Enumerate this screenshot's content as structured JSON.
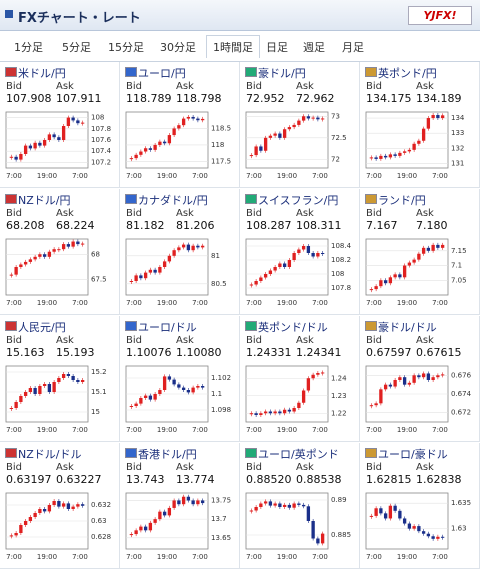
{
  "header": {
    "title": "FXチャート・レート",
    "logo": "YJFX!"
  },
  "tabs": [
    "1分足",
    "5分足",
    "15分足",
    "30分足",
    "1時間足",
    "日足",
    "週足",
    "月足"
  ],
  "selected_tab": 4,
  "labels": {
    "bid": "Bid",
    "ask": "Ask"
  },
  "time_labels": [
    "7:00",
    "19:00",
    "7:00"
  ],
  "panels": [
    {
      "name": "米ドル/円",
      "bid": "107.908",
      "ask": "107.911",
      "ylim": [
        107.1,
        108.1
      ],
      "yticks": [
        108,
        107.8,
        107.6,
        107.4,
        107.2
      ],
      "values": [
        107.3,
        107.25,
        107.35,
        107.5,
        107.45,
        107.55,
        107.5,
        107.6,
        107.7,
        107.65,
        107.6,
        107.85,
        108.0,
        107.95,
        107.9,
        107.91
      ]
    },
    {
      "name": "ユーロ/円",
      "bid": "118.789",
      "ask": "118.798",
      "ylim": [
        117.3,
        119
      ],
      "yticks": [
        118.5,
        118,
        117.5
      ],
      "values": [
        117.6,
        117.7,
        117.8,
        117.9,
        117.85,
        118.0,
        118.1,
        118.05,
        118.3,
        118.5,
        118.6,
        118.8,
        118.85,
        118.8,
        118.75,
        118.79
      ]
    },
    {
      "name": "豪ドル/円",
      "bid": "72.952",
      "ask": "72.962",
      "ylim": [
        71.8,
        73.1
      ],
      "yticks": [
        73,
        72.5,
        72
      ],
      "values": [
        72.1,
        72.3,
        72.2,
        72.5,
        72.55,
        72.6,
        72.5,
        72.7,
        72.75,
        72.8,
        72.9,
        73.0,
        72.95,
        72.97,
        72.93,
        72.95
      ]
    },
    {
      "name": "英ポンド/円",
      "bid": "134.175",
      "ask": "134.189",
      "ylim": [
        130.7,
        134.4
      ],
      "yticks": [
        134,
        133,
        132,
        131
      ],
      "values": [
        131.4,
        131.3,
        131.5,
        131.4,
        131.6,
        131.5,
        131.7,
        131.8,
        131.9,
        132.3,
        132.5,
        133.3,
        134.0,
        134.2,
        134.0,
        134.18
      ]
    },
    {
      "name": "NZドル/円",
      "bid": "68.208",
      "ask": "68.224",
      "ylim": [
        67.2,
        68.3
      ],
      "yticks": [
        68,
        67.5
      ],
      "values": [
        67.6,
        67.75,
        67.8,
        67.85,
        67.9,
        67.95,
        68.0,
        67.95,
        68.05,
        68.1,
        68.1,
        68.2,
        68.15,
        68.25,
        68.2,
        68.21
      ]
    },
    {
      "name": "カナダドル/円",
      "bid": "81.182",
      "ask": "81.206",
      "ylim": [
        80.3,
        81.3
      ],
      "yticks": [
        81,
        80.5
      ],
      "values": [
        80.55,
        80.65,
        80.6,
        80.7,
        80.75,
        80.7,
        80.8,
        80.9,
        81.0,
        81.1,
        81.15,
        81.2,
        81.1,
        81.18,
        81.15,
        81.18
      ]
    },
    {
      "name": "スイスフラン/円",
      "bid": "108.287",
      "ask": "108.311",
      "ylim": [
        107.7,
        108.5
      ],
      "yticks": [
        108.4,
        108.2,
        108,
        107.8
      ],
      "values": [
        107.85,
        107.9,
        107.95,
        108.0,
        108.05,
        108.1,
        108.15,
        108.1,
        108.2,
        108.3,
        108.35,
        108.4,
        108.3,
        108.25,
        108.3,
        108.29
      ]
    },
    {
      "name": "ランド/円",
      "bid": "7.167",
      "ask": "7.180",
      "ylim": [
        7.0,
        7.19
      ],
      "yticks": [
        7.15,
        7.1,
        7.05
      ],
      "values": [
        7.02,
        7.03,
        7.05,
        7.04,
        7.06,
        7.07,
        7.06,
        7.1,
        7.11,
        7.12,
        7.14,
        7.16,
        7.15,
        7.17,
        7.16,
        7.17
      ]
    },
    {
      "name": "人民元/円",
      "bid": "15.163",
      "ask": "15.193",
      "ylim": [
        14.95,
        15.23
      ],
      "yticks": [
        15.2,
        15.1,
        15
      ],
      "values": [
        15.02,
        15.05,
        15.08,
        15.1,
        15.12,
        15.09,
        15.13,
        15.14,
        15.1,
        15.15,
        15.17,
        15.19,
        15.18,
        15.16,
        15.15,
        15.16
      ]
    },
    {
      "name": "ユーロ/ドル",
      "bid": "1.10076",
      "ask": "1.10080",
      "ylim": [
        1.0965,
        1.1035
      ],
      "yticks": [
        1.102,
        1.1,
        1.098
      ],
      "values": [
        1.0985,
        1.0988,
        1.0995,
        1.0998,
        1.0993,
        1.1,
        1.1005,
        1.1022,
        1.1018,
        1.1012,
        1.1008,
        1.1005,
        1.1002,
        1.1008,
        1.101,
        1.1008
      ]
    },
    {
      "name": "英ポンド/ドル",
      "bid": "1.24331",
      "ask": "1.24341",
      "ylim": [
        1.215,
        1.247
      ],
      "yticks": [
        1.24,
        1.23,
        1.22
      ],
      "values": [
        1.22,
        1.219,
        1.22,
        1.221,
        1.22,
        1.221,
        1.22,
        1.222,
        1.221,
        1.223,
        1.226,
        1.233,
        1.24,
        1.242,
        1.243,
        1.2433
      ]
    },
    {
      "name": "豪ドル/ドル",
      "bid": "0.67597",
      "ask": "0.67615",
      "ylim": [
        0.671,
        0.677
      ],
      "yticks": [
        0.676,
        0.674,
        0.672
      ],
      "values": [
        0.6728,
        0.673,
        0.6745,
        0.675,
        0.6748,
        0.6755,
        0.6758,
        0.675,
        0.6752,
        0.676,
        0.6758,
        0.6762,
        0.6755,
        0.6758,
        0.676,
        0.6761
      ]
    },
    {
      "name": "NZドル/ドル",
      "bid": "0.63197",
      "ask": "0.63227",
      "ylim": [
        0.6265,
        0.6335
      ],
      "yticks": [
        0.632,
        0.63,
        0.628
      ],
      "values": [
        0.6282,
        0.6285,
        0.6295,
        0.63,
        0.6305,
        0.631,
        0.6315,
        0.6312,
        0.632,
        0.6325,
        0.6318,
        0.6322,
        0.6315,
        0.6318,
        0.6321,
        0.6319
      ]
    },
    {
      "name": "香港ドル/円",
      "bid": "13.743",
      "ask": "13.774",
      "ylim": [
        13.62,
        13.77
      ],
      "yticks": [
        13.75,
        13.7,
        13.65
      ],
      "values": [
        13.66,
        13.67,
        13.68,
        13.67,
        13.69,
        13.7,
        13.72,
        13.71,
        13.73,
        13.75,
        13.74,
        13.76,
        13.75,
        13.74,
        13.75,
        13.743
      ]
    },
    {
      "name": "ユーロ/英ポンド",
      "bid": "0.88520",
      "ask": "0.88538",
      "ylim": [
        0.883,
        0.891
      ],
      "yticks": [
        0.89,
        0.885
      ],
      "values": [
        0.8885,
        0.889,
        0.8895,
        0.8898,
        0.8892,
        0.8895,
        0.889,
        0.8893,
        0.8889,
        0.8895,
        0.8893,
        0.8891,
        0.887,
        0.8845,
        0.8838,
        0.8852
      ]
    },
    {
      "name": "ユーロ/豪ドル",
      "bid": "1.62815",
      "ask": "1.62838",
      "ylim": [
        1.626,
        1.637
      ],
      "yticks": [
        1.635,
        1.63
      ],
      "values": [
        1.6325,
        1.634,
        1.633,
        1.632,
        1.6345,
        1.6335,
        1.632,
        1.631,
        1.63,
        1.6305,
        1.6295,
        1.629,
        1.6285,
        1.628,
        1.6284,
        1.6282
      ]
    }
  ]
}
